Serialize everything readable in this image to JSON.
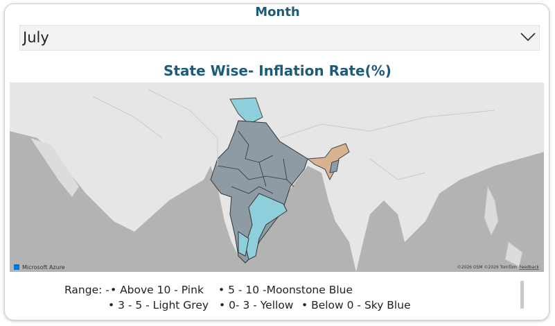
{
  "month_filter": {
    "label": "Month",
    "selected": "July"
  },
  "visual": {
    "title": "State Wise- Inflation Rate(%)"
  },
  "map": {
    "brand": "Microsoft Azure",
    "copyright": "©2026 OSM  ©2026 TomTom",
    "feedback": "Feedback"
  },
  "legend": {
    "prefix": "Range: -",
    "items": [
      "• Above 10 - Pink",
      "• 5 - 10 -Moonstone Blue",
      "• 3 - 5 - Light Grey",
      "• 0- 3 - Yellow",
      "• Below 0 - Sky Blue"
    ]
  }
}
